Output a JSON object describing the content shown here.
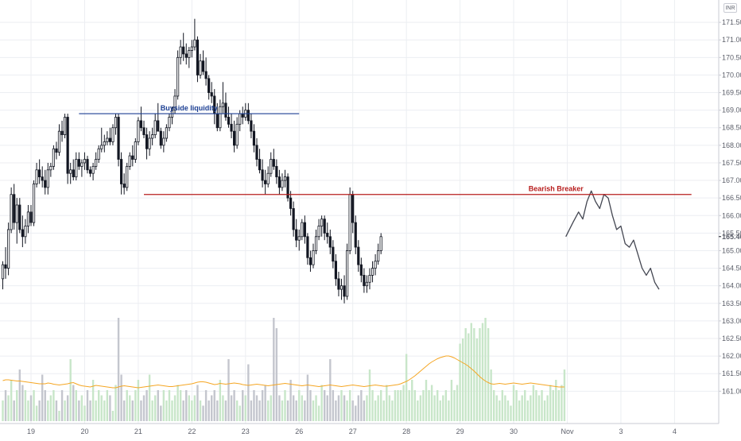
{
  "chart_data": {
    "type": "candlestick",
    "currency": "INR",
    "last_price_label": "165.40",
    "colors": {
      "candle": "#131722",
      "forecast": "#434651",
      "volume_up": "#c8e6c9",
      "volume_down": "#c4c6ce",
      "volume_ma": "#f5a623",
      "buyside_line": "#1c3f94",
      "bearish_line": "#b71c1c",
      "grid": "#eceef2"
    },
    "y_axis": {
      "min": 160.6,
      "max": 172.0,
      "ticks": [
        "161.00",
        "161.50",
        "162.00",
        "162.50",
        "163.00",
        "163.50",
        "164.00",
        "164.50",
        "165.00",
        "165.50",
        "166.00",
        "166.50",
        "167.00",
        "167.50",
        "168.00",
        "168.50",
        "169.00",
        "169.50",
        "170.00",
        "170.50",
        "171.00",
        "171.50"
      ]
    },
    "x_axis": {
      "labels": [
        {
          "label": "19",
          "index": 10
        },
        {
          "label": "20",
          "index": 29
        },
        {
          "label": "21",
          "index": 48
        },
        {
          "label": "22",
          "index": 67
        },
        {
          "label": "23",
          "index": 86
        },
        {
          "label": "26",
          "index": 105
        },
        {
          "label": "27",
          "index": 124
        },
        {
          "label": "28",
          "index": 143
        },
        {
          "label": "29",
          "index": 162
        },
        {
          "label": "30",
          "index": 181
        },
        {
          "label": "Nov",
          "index": 200
        },
        {
          "label": "3",
          "index": 219
        },
        {
          "label": "4",
          "index": 238
        }
      ]
    },
    "candles": [
      [
        164.2,
        164.7,
        163.9,
        164.6
      ],
      [
        164.6,
        165.1,
        164.2,
        164.5
      ],
      [
        164.5,
        165.8,
        164.3,
        165.6
      ],
      [
        165.6,
        166.8,
        165.5,
        166.6
      ],
      [
        166.6,
        166.9,
        165.6,
        165.8
      ],
      [
        165.8,
        166.5,
        165.2,
        166.3
      ],
      [
        166.3,
        166.5,
        165.5,
        165.6
      ],
      [
        165.6,
        166.0,
        165.1,
        165.4
      ],
      [
        165.4,
        165.9,
        165.2,
        165.7
      ],
      [
        165.7,
        166.3,
        165.5,
        166.1
      ],
      [
        166.1,
        166.3,
        165.7,
        165.8
      ],
      [
        165.8,
        167.0,
        165.7,
        166.9
      ],
      [
        166.9,
        167.5,
        166.8,
        167.3
      ],
      [
        167.3,
        167.6,
        166.9,
        167.1
      ],
      [
        167.1,
        167.4,
        166.8,
        167.0
      ],
      [
        167.0,
        167.3,
        166.6,
        166.8
      ],
      [
        166.8,
        167.5,
        166.6,
        167.3
      ],
      [
        167.3,
        167.5,
        167.1,
        167.4
      ],
      [
        167.4,
        168.0,
        167.3,
        167.9
      ],
      [
        167.9,
        168.1,
        167.6,
        167.8
      ],
      [
        167.8,
        168.6,
        167.7,
        168.4
      ],
      [
        168.4,
        168.7,
        168.1,
        168.3
      ],
      [
        168.3,
        168.9,
        168.2,
        168.8
      ],
      [
        168.8,
        168.9,
        166.9,
        167.2
      ],
      [
        167.2,
        167.5,
        166.9,
        167.3
      ],
      [
        167.3,
        167.6,
        167.0,
        167.1
      ],
      [
        167.1,
        167.8,
        167.0,
        167.6
      ],
      [
        167.6,
        167.8,
        167.3,
        167.4
      ],
      [
        167.4,
        167.6,
        167.1,
        167.5
      ],
      [
        167.5,
        167.8,
        167.3,
        167.6
      ],
      [
        167.6,
        167.7,
        167.2,
        167.3
      ],
      [
        167.3,
        167.4,
        167.1,
        167.2
      ],
      [
        167.2,
        167.5,
        167.0,
        167.4
      ],
      [
        167.4,
        167.8,
        167.3,
        167.6
      ],
      [
        167.6,
        168.0,
        167.5,
        167.9
      ],
      [
        167.9,
        168.5,
        167.8,
        168.0
      ],
      [
        168.0,
        168.3,
        167.8,
        168.1
      ],
      [
        168.1,
        168.4,
        168.0,
        168.2
      ],
      [
        168.2,
        168.5,
        168.0,
        168.1
      ],
      [
        168.1,
        168.6,
        168.0,
        168.5
      ],
      [
        168.5,
        168.9,
        168.3,
        168.8
      ],
      [
        168.8,
        168.9,
        167.4,
        167.6
      ],
      [
        167.6,
        167.8,
        166.6,
        166.9
      ],
      [
        166.9,
        167.2,
        166.6,
        166.8
      ],
      [
        166.8,
        167.5,
        166.7,
        167.4
      ],
      [
        167.4,
        167.8,
        167.3,
        167.7
      ],
      [
        167.7,
        168.0,
        167.4,
        167.6
      ],
      [
        167.6,
        168.2,
        167.5,
        168.1
      ],
      [
        168.1,
        168.8,
        168.0,
        168.7
      ],
      [
        168.7,
        169.1,
        168.4,
        168.5
      ],
      [
        168.5,
        168.7,
        168.2,
        168.3
      ],
      [
        168.3,
        168.5,
        167.6,
        167.9
      ],
      [
        167.9,
        168.4,
        167.7,
        168.2
      ],
      [
        168.2,
        168.5,
        168.0,
        168.3
      ],
      [
        168.3,
        168.9,
        168.2,
        168.7
      ],
      [
        168.7,
        169.2,
        168.5,
        168.4
      ],
      [
        168.4,
        168.5,
        167.9,
        168.0
      ],
      [
        168.0,
        168.4,
        167.8,
        168.2
      ],
      [
        168.2,
        168.6,
        168.1,
        168.5
      ],
      [
        168.5,
        168.9,
        168.4,
        168.8
      ],
      [
        168.8,
        169.1,
        168.6,
        169.0
      ],
      [
        169.0,
        169.6,
        168.9,
        169.4
      ],
      [
        169.4,
        170.7,
        169.3,
        170.5
      ],
      [
        170.5,
        171.0,
        170.3,
        170.8
      ],
      [
        170.8,
        171.2,
        170.4,
        170.6
      ],
      [
        170.6,
        170.9,
        170.3,
        170.5
      ],
      [
        170.5,
        170.8,
        170.2,
        170.7
      ],
      [
        170.7,
        171.0,
        170.5,
        170.8
      ],
      [
        170.8,
        171.6,
        170.7,
        171.0
      ],
      [
        171.0,
        171.1,
        169.8,
        170.0
      ],
      [
        170.0,
        170.6,
        169.9,
        170.4
      ],
      [
        170.4,
        170.7,
        170.0,
        170.1
      ],
      [
        170.1,
        170.5,
        169.7,
        169.9
      ],
      [
        169.9,
        170.0,
        169.3,
        169.5
      ],
      [
        169.5,
        169.8,
        169.2,
        169.4
      ],
      [
        169.4,
        169.6,
        168.6,
        168.9
      ],
      [
        168.9,
        169.2,
        168.4,
        168.5
      ],
      [
        168.5,
        169.3,
        168.4,
        169.1
      ],
      [
        169.1,
        169.8,
        168.9,
        169.2
      ],
      [
        169.2,
        169.5,
        168.7,
        168.8
      ],
      [
        168.8,
        169.1,
        168.5,
        168.6
      ],
      [
        168.6,
        168.9,
        168.2,
        168.4
      ],
      [
        168.4,
        168.7,
        167.8,
        168.0
      ],
      [
        168.0,
        168.8,
        167.9,
        168.6
      ],
      [
        168.6,
        169.0,
        168.4,
        168.9
      ],
      [
        168.9,
        169.1,
        168.6,
        168.8
      ],
      [
        168.8,
        169.2,
        168.7,
        169.0
      ],
      [
        169.0,
        169.2,
        168.6,
        168.7
      ],
      [
        168.7,
        168.9,
        168.2,
        168.4
      ],
      [
        168.4,
        168.6,
        167.8,
        168.0
      ],
      [
        168.0,
        168.2,
        167.4,
        167.6
      ],
      [
        167.6,
        167.9,
        167.2,
        167.3
      ],
      [
        167.3,
        167.6,
        166.8,
        167.0
      ],
      [
        167.0,
        167.3,
        166.6,
        166.9
      ],
      [
        166.9,
        167.4,
        166.8,
        167.2
      ],
      [
        167.2,
        167.8,
        167.1,
        167.6
      ],
      [
        167.6,
        167.9,
        167.3,
        167.4
      ],
      [
        167.4,
        167.6,
        166.9,
        167.1
      ],
      [
        167.1,
        167.3,
        166.6,
        166.8
      ],
      [
        166.8,
        167.2,
        166.7,
        167.0
      ],
      [
        167.0,
        167.3,
        166.8,
        167.1
      ],
      [
        167.1,
        167.2,
        166.4,
        166.5
      ],
      [
        166.5,
        166.7,
        166.0,
        166.2
      ],
      [
        166.2,
        166.4,
        165.4,
        165.6
      ],
      [
        165.6,
        165.9,
        165.1,
        165.3
      ],
      [
        165.3,
        165.6,
        165.0,
        165.4
      ],
      [
        165.4,
        165.9,
        165.3,
        165.8
      ],
      [
        165.8,
        166.0,
        165.2,
        165.4
      ],
      [
        165.4,
        165.5,
        164.6,
        164.8
      ],
      [
        164.8,
        165.0,
        164.4,
        164.6
      ],
      [
        164.6,
        165.2,
        164.5,
        165.0
      ],
      [
        165.0,
        165.6,
        164.9,
        165.4
      ],
      [
        165.4,
        165.9,
        165.3,
        165.7
      ],
      [
        165.7,
        166.0,
        165.4,
        165.9
      ],
      [
        165.9,
        166.0,
        165.3,
        165.5
      ],
      [
        165.5,
        165.8,
        165.2,
        165.4
      ],
      [
        165.4,
        165.6,
        164.9,
        165.1
      ],
      [
        165.1,
        165.3,
        164.5,
        164.7
      ],
      [
        164.7,
        164.9,
        164.0,
        164.2
      ],
      [
        164.2,
        164.4,
        163.7,
        163.9
      ],
      [
        163.9,
        164.2,
        163.6,
        164.0
      ],
      [
        164.0,
        164.3,
        163.5,
        163.7
      ],
      [
        163.7,
        165.2,
        163.6,
        165.0
      ],
      [
        165.0,
        166.8,
        164.9,
        166.6
      ],
      [
        166.6,
        166.7,
        165.5,
        165.8
      ],
      [
        165.8,
        166.0,
        164.9,
        165.1
      ],
      [
        165.1,
        165.3,
        164.4,
        164.6
      ],
      [
        164.6,
        164.8,
        164.1,
        164.3
      ],
      [
        164.3,
        164.5,
        163.8,
        164.0
      ],
      [
        164.0,
        164.3,
        163.8,
        164.1
      ],
      [
        164.1,
        164.5,
        163.9,
        164.3
      ],
      [
        164.3,
        164.7,
        164.1,
        164.5
      ],
      [
        164.5,
        164.9,
        164.3,
        164.7
      ],
      [
        164.7,
        165.2,
        164.6,
        165.0
      ],
      [
        165.0,
        165.5,
        164.9,
        165.4
      ]
    ],
    "forecast_path": [
      {
        "i": 199.5,
        "price": 165.4
      },
      {
        "i": 202,
        "price": 165.8
      },
      {
        "i": 204,
        "price": 166.1
      },
      {
        "i": 205.5,
        "price": 165.9
      },
      {
        "i": 207,
        "price": 166.4
      },
      {
        "i": 208.5,
        "price": 166.7
      },
      {
        "i": 210,
        "price": 166.4
      },
      {
        "i": 211.5,
        "price": 166.2
      },
      {
        "i": 213,
        "price": 166.6
      },
      {
        "i": 214.5,
        "price": 166.5
      },
      {
        "i": 216,
        "price": 166.0
      },
      {
        "i": 217.5,
        "price": 165.6
      },
      {
        "i": 219,
        "price": 165.7
      },
      {
        "i": 220.5,
        "price": 165.2
      },
      {
        "i": 222,
        "price": 165.1
      },
      {
        "i": 223.5,
        "price": 165.3
      },
      {
        "i": 225,
        "price": 164.9
      },
      {
        "i": 226.5,
        "price": 164.5
      },
      {
        "i": 228,
        "price": 164.3
      },
      {
        "i": 229.5,
        "price": 164.5
      },
      {
        "i": 231,
        "price": 164.1
      },
      {
        "i": 232.5,
        "price": 163.9
      }
    ],
    "volume": [
      0.2,
      0.3,
      0.25,
      0.4,
      0.2,
      0.3,
      0.5,
      0.35,
      0.3,
      0.2,
      0.25,
      0.3,
      0.15,
      0.2,
      0.45,
      0.3,
      0.2,
      0.25,
      0.3,
      0.2,
      0.1,
      0.3,
      0.2,
      0.25,
      0.6,
      0.35,
      0.3,
      0.2,
      0.25,
      0.15,
      0.3,
      0.2,
      0.4,
      0.2,
      0.3,
      0.25,
      0.2,
      0.3,
      0.25,
      0.1,
      0.35,
      1.0,
      0.45,
      0.2,
      0.3,
      0.25,
      0.2,
      0.3,
      0.4,
      0.2,
      0.25,
      0.3,
      0.45,
      0.2,
      0.25,
      0.3,
      0.15,
      0.3,
      0.2,
      0.3,
      0.2,
      0.25,
      0.35,
      0.3,
      0.2,
      0.3,
      0.25,
      0.2,
      0.25,
      0.35,
      0.2,
      0.15,
      0.3,
      0.2,
      0.25,
      0.3,
      0.2,
      0.4,
      0.25,
      0.2,
      0.6,
      0.25,
      0.3,
      0.2,
      0.15,
      0.3,
      0.25,
      0.55,
      0.2,
      0.3,
      0.25,
      0.2,
      0.3,
      0.35,
      0.2,
      0.25,
      1.0,
      0.9,
      0.25,
      0.2,
      0.3,
      0.2,
      0.4,
      0.25,
      0.2,
      0.3,
      0.25,
      0.2,
      0.45,
      0.3,
      0.2,
      0.25,
      0.15,
      0.35,
      0.3,
      0.25,
      0.6,
      0.3,
      0.2,
      0.25,
      0.3,
      0.25,
      0.2,
      0.3,
      0.2,
      0.15,
      0.25,
      0.3,
      0.2,
      0.25,
      0.5,
      0.3,
      0.2,
      0.25,
      0.3,
      0.2,
      0.35,
      0.25,
      0.2,
      0.3,
      0.3,
      0.3,
      0.35,
      0.65,
      0.3,
      0.4,
      0.3,
      0.2,
      0.25,
      0.3,
      0.4,
      0.3,
      0.35,
      0.25,
      0.3,
      0.2,
      0.25,
      0.3,
      0.2,
      0.4,
      0.3,
      0.35,
      0.75,
      0.8,
      0.9,
      0.85,
      0.95,
      0.9,
      0.8,
      0.9,
      0.95,
      1.0,
      0.9,
      0.5,
      0.3,
      0.25,
      0.2,
      0.3,
      0.25,
      0.2,
      0.15,
      0.35,
      0.3,
      0.2,
      0.25,
      0.3,
      0.2,
      0.25,
      0.35,
      0.3,
      0.25,
      0.3,
      0.2,
      0.25,
      0.35,
      0.3,
      0.4,
      0.3,
      0.35,
      0.5
    ],
    "volume_ma": [
      0.38,
      0.4,
      0.4,
      0.39,
      0.38,
      0.37,
      0.37,
      0.36,
      0.35,
      0.34,
      0.33,
      0.32,
      0.31,
      0.3,
      0.3,
      0.3,
      0.32,
      0.31,
      0.29,
      0.28,
      0.27,
      0.28,
      0.29,
      0.3,
      0.32,
      0.33,
      0.3,
      0.27,
      0.25,
      0.24,
      0.23,
      0.22,
      0.24,
      0.26,
      0.25,
      0.24,
      0.23,
      0.22,
      0.21,
      0.2,
      0.2,
      0.22,
      0.24,
      0.25,
      0.24,
      0.23,
      0.22,
      0.21,
      0.2,
      0.21,
      0.22,
      0.23,
      0.24,
      0.25,
      0.26,
      0.27,
      0.26,
      0.25,
      0.24,
      0.23,
      0.23,
      0.24,
      0.25,
      0.26,
      0.27,
      0.28,
      0.29,
      0.3,
      0.32,
      0.34,
      0.35,
      0.35,
      0.34,
      0.32,
      0.3,
      0.28,
      0.29,
      0.31,
      0.3,
      0.29,
      0.3,
      0.31,
      0.32,
      0.31,
      0.3,
      0.28,
      0.27,
      0.26,
      0.27,
      0.28,
      0.29,
      0.28,
      0.27,
      0.26,
      0.25,
      0.26,
      0.27,
      0.28,
      0.29,
      0.3,
      0.31,
      0.3,
      0.29,
      0.28,
      0.27,
      0.26,
      0.25,
      0.26,
      0.27,
      0.26,
      0.25,
      0.24,
      0.23,
      0.24,
      0.25,
      0.26,
      0.27,
      0.26,
      0.25,
      0.24,
      0.23,
      0.24,
      0.25,
      0.26,
      0.27,
      0.26,
      0.25,
      0.24,
      0.23,
      0.24,
      0.25,
      0.26,
      0.27,
      0.26,
      0.25,
      0.24,
      0.24,
      0.25,
      0.26,
      0.27,
      0.28,
      0.3,
      0.33,
      0.36,
      0.4,
      0.45,
      0.5,
      0.56,
      0.62,
      0.68,
      0.74,
      0.8,
      0.85,
      0.89,
      0.93,
      0.96,
      0.98,
      1.0,
      1.0,
      0.98,
      0.95,
      0.91,
      0.87,
      0.83,
      0.79,
      0.74,
      0.68,
      0.62,
      0.55,
      0.48,
      0.42,
      0.37,
      0.33,
      0.3,
      0.29,
      0.3,
      0.31,
      0.3,
      0.29,
      0.3,
      0.31,
      0.32,
      0.31,
      0.3,
      0.29,
      0.3,
      0.31,
      0.32,
      0.31,
      0.3,
      0.29,
      0.28,
      0.27,
      0.26,
      0.25,
      0.24,
      0.23,
      0.22,
      0.22,
      0.22
    ],
    "annotations": [
      {
        "type": "hline",
        "price": 168.9,
        "from_index": 27,
        "to_index": 105,
        "label": "Buyside liquidity",
        "label_index": 66
      },
      {
        "type": "hline",
        "price": 166.6,
        "from_index": 50,
        "to_index": 244,
        "label": "Bearish Breaker",
        "label_index": 196
      }
    ]
  }
}
